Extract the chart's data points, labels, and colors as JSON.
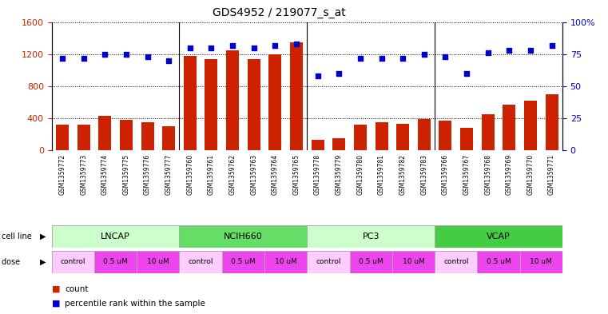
{
  "title": "GDS4952 / 219077_s_at",
  "samples": [
    "GSM1359772",
    "GSM1359773",
    "GSM1359774",
    "GSM1359775",
    "GSM1359776",
    "GSM1359777",
    "GSM1359760",
    "GSM1359761",
    "GSM1359762",
    "GSM1359763",
    "GSM1359764",
    "GSM1359765",
    "GSM1359778",
    "GSM1359779",
    "GSM1359780",
    "GSM1359781",
    "GSM1359782",
    "GSM1359783",
    "GSM1359766",
    "GSM1359767",
    "GSM1359768",
    "GSM1359769",
    "GSM1359770",
    "GSM1359771"
  ],
  "counts": [
    320,
    325,
    430,
    380,
    350,
    300,
    1180,
    1140,
    1250,
    1140,
    1200,
    1350,
    130,
    155,
    320,
    350,
    330,
    390,
    370,
    280,
    450,
    570,
    620,
    700
  ],
  "percentile_ranks": [
    72,
    72,
    75,
    75,
    73,
    70,
    80,
    80,
    82,
    80,
    82,
    83,
    58,
    60,
    72,
    72,
    72,
    75,
    73,
    60,
    76,
    78,
    78,
    82
  ],
  "cell_line_data": [
    {
      "name": "LNCAP",
      "start": 0,
      "end": 6,
      "color": "#ccffcc"
    },
    {
      "name": "NCIH660",
      "start": 6,
      "end": 12,
      "color": "#66dd66"
    },
    {
      "name": "PC3",
      "start": 12,
      "end": 18,
      "color": "#ccffcc"
    },
    {
      "name": "VCAP",
      "start": 18,
      "end": 24,
      "color": "#44cc44"
    }
  ],
  "dose_pattern": [
    {
      "label": "control",
      "start": 0,
      "end": 2,
      "color": "#ffccff"
    },
    {
      "label": "0.5 uM",
      "start": 2,
      "end": 4,
      "color": "#ee44ee"
    },
    {
      "label": "10 uM",
      "start": 4,
      "end": 6,
      "color": "#ee44ee"
    },
    {
      "label": "control",
      "start": 6,
      "end": 8,
      "color": "#ffccff"
    },
    {
      "label": "0.5 uM",
      "start": 8,
      "end": 10,
      "color": "#ee44ee"
    },
    {
      "label": "10 uM",
      "start": 10,
      "end": 12,
      "color": "#ee44ee"
    },
    {
      "label": "control",
      "start": 12,
      "end": 14,
      "color": "#ffccff"
    },
    {
      "label": "0.5 uM",
      "start": 14,
      "end": 16,
      "color": "#ee44ee"
    },
    {
      "label": "10 uM",
      "start": 16,
      "end": 18,
      "color": "#ee44ee"
    },
    {
      "label": "control",
      "start": 18,
      "end": 20,
      "color": "#ffccff"
    },
    {
      "label": "0.5 uM",
      "start": 20,
      "end": 22,
      "color": "#ee44ee"
    },
    {
      "label": "10 uM",
      "start": 22,
      "end": 24,
      "color": "#ee44ee"
    }
  ],
  "ylim_left": [
    0,
    1600
  ],
  "ylim_right": [
    0,
    100
  ],
  "yticks_left": [
    0,
    400,
    800,
    1200,
    1600
  ],
  "yticks_right": [
    0,
    25,
    50,
    75,
    100
  ],
  "bar_color": "#cc2200",
  "dot_color": "#0000cc",
  "bg_color": "#ffffff",
  "tick_bg": "#d0d0d0",
  "legend_count": "count",
  "legend_pct": "percentile rank within the sample"
}
